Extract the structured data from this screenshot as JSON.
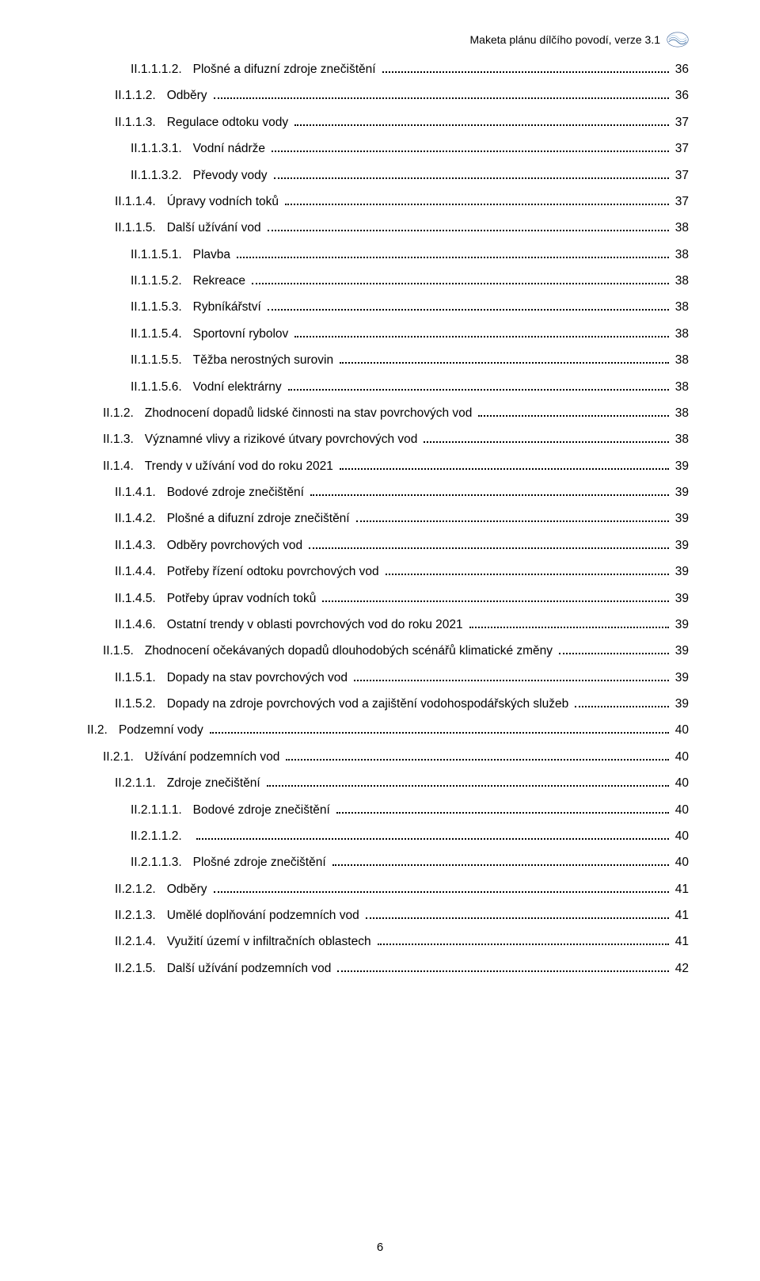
{
  "header": {
    "text": "Maketa plánu dílčího povodí, verze 3.1"
  },
  "footer": {
    "pageNumber": "6"
  },
  "toc": [
    {
      "num": "II.1.1.1.2.",
      "title": "Plošné a difuzní zdroje znečištění",
      "page": "36",
      "indent": 3
    },
    {
      "num": "II.1.1.2.",
      "title": "Odběry",
      "page": "36",
      "indent": 2
    },
    {
      "num": "II.1.1.3.",
      "title": "Regulace odtoku vody",
      "page": "37",
      "indent": 2
    },
    {
      "num": "II.1.1.3.1.",
      "title": "Vodní nádrže",
      "page": "37",
      "indent": 3
    },
    {
      "num": "II.1.1.3.2.",
      "title": "Převody vody",
      "page": "37",
      "indent": 3
    },
    {
      "num": "II.1.1.4.",
      "title": "Úpravy vodních toků",
      "page": "37",
      "indent": 2
    },
    {
      "num": "II.1.1.5.",
      "title": "Další užívání vod",
      "page": "38",
      "indent": 2
    },
    {
      "num": "II.1.1.5.1.",
      "title": "Plavba",
      "page": "38",
      "indent": 3
    },
    {
      "num": "II.1.1.5.2.",
      "title": "Rekreace",
      "page": "38",
      "indent": 3
    },
    {
      "num": "II.1.1.5.3.",
      "title": "Rybníkářství",
      "page": "38",
      "indent": 3
    },
    {
      "num": "II.1.1.5.4.",
      "title": "Sportovní rybolov",
      "page": "38",
      "indent": 3
    },
    {
      "num": "II.1.1.5.5.",
      "title": "Těžba nerostných surovin",
      "page": "38",
      "indent": 3
    },
    {
      "num": "II.1.1.5.6.",
      "title": "Vodní elektrárny",
      "page": "38",
      "indent": 3
    },
    {
      "num": "II.1.2.",
      "title": "Zhodnocení dopadů lidské činnosti na stav povrchových vod",
      "page": "38",
      "indent": 1
    },
    {
      "num": "II.1.3.",
      "title": "Významné vlivy a rizikové útvary povrchových vod",
      "page": "38",
      "indent": 1
    },
    {
      "num": "II.1.4.",
      "title": "Trendy v užívání vod do roku 2021",
      "page": "39",
      "indent": 1
    },
    {
      "num": "II.1.4.1.",
      "title": "Bodové zdroje znečištění",
      "page": "39",
      "indent": 2
    },
    {
      "num": "II.1.4.2.",
      "title": "Plošné a difuzní zdroje znečištění",
      "page": "39",
      "indent": 2
    },
    {
      "num": "II.1.4.3.",
      "title": "Odběry povrchových vod",
      "page": "39",
      "indent": 2
    },
    {
      "num": "II.1.4.4.",
      "title": "Potřeby řízení odtoku povrchových vod",
      "page": "39",
      "indent": 2
    },
    {
      "num": "II.1.4.5.",
      "title": "Potřeby úprav vodních toků",
      "page": "39",
      "indent": 2
    },
    {
      "num": "II.1.4.6.",
      "title": "Ostatní trendy v oblasti  povrchových vod do roku 2021",
      "page": "39",
      "indent": 2
    },
    {
      "num": "II.1.5.",
      "title": "Zhodnocení očekávaných dopadů dlouhodobých scénářů klimatické změny",
      "page": "39",
      "indent": 1
    },
    {
      "num": "II.1.5.1.",
      "title": "Dopady na stav povrchových vod",
      "page": "39",
      "indent": 2
    },
    {
      "num": "II.1.5.2.",
      "title": "Dopady na zdroje povrchových vod a zajištění vodohospodářských služeb",
      "page": "39",
      "indent": 2
    },
    {
      "num": "II.2.",
      "title": "Podzemní vody",
      "page": "40",
      "indent": 0
    },
    {
      "num": "II.2.1.",
      "title": "Užívání podzemních vod",
      "page": "40",
      "indent": 1
    },
    {
      "num": "II.2.1.1.",
      "title": "Zdroje znečištění",
      "page": "40",
      "indent": 2
    },
    {
      "num": "II.2.1.1.1.",
      "title": "Bodové zdroje znečištění",
      "page": "40",
      "indent": 3
    },
    {
      "num": "II.2.1.1.2.",
      "title": "",
      "page": "40",
      "indent": 3
    },
    {
      "num": "II.2.1.1.3.",
      "title": "Plošné zdroje znečištění",
      "page": "40",
      "indent": 3
    },
    {
      "num": "II.2.1.2.",
      "title": "Odběry",
      "page": "41",
      "indent": 2
    },
    {
      "num": "II.2.1.3.",
      "title": "Umělé doplňování podzemních vod",
      "page": "41",
      "indent": 2
    },
    {
      "num": "II.2.1.4.",
      "title": "Využití území v infiltračních oblastech",
      "page": "41",
      "indent": 2
    },
    {
      "num": "II.2.1.5.",
      "title": "Další užívání podzemních vod",
      "page": "42",
      "indent": 2
    }
  ]
}
